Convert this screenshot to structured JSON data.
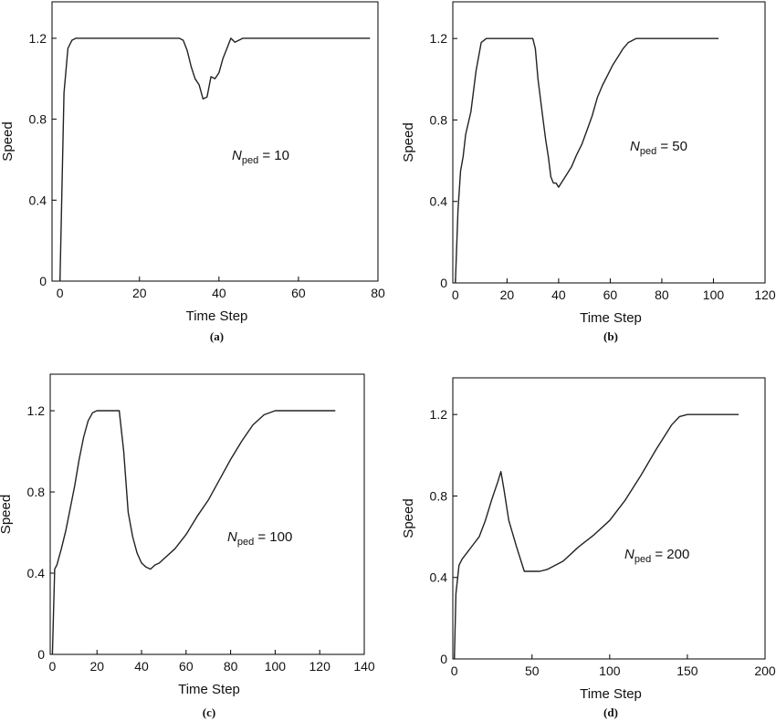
{
  "chart_data": [
    {
      "type": "line",
      "caption": "(a)",
      "xlabel": "Time Step",
      "ylabel": "Speed",
      "xlim": [
        -2,
        80
      ],
      "ylim": [
        0,
        1.2
      ],
      "xticks": [
        0,
        20,
        40,
        60,
        80
      ],
      "yticks": [
        0,
        0.4,
        0.8,
        1.2
      ],
      "ytick_labels": [
        "0",
        "0.4",
        "0.8",
        "1.2"
      ],
      "annotation": {
        "symbol": "N",
        "subscript": "ped",
        "text": " = 10"
      },
      "series": [
        {
          "x": [
            0,
            1,
            2,
            3,
            4,
            5,
            10,
            20,
            30,
            31,
            32,
            33,
            34,
            35,
            36,
            37,
            38,
            39,
            40,
            41,
            42,
            43,
            44,
            45,
            46,
            47,
            50,
            60,
            70,
            78
          ],
          "y": [
            0,
            0.93,
            1.15,
            1.19,
            1.2,
            1.2,
            1.2,
            1.2,
            1.2,
            1.19,
            1.14,
            1.06,
            1.0,
            0.97,
            0.9,
            0.91,
            1.01,
            1.0,
            1.03,
            1.1,
            1.15,
            1.2,
            1.18,
            1.19,
            1.2,
            1.2,
            1.2,
            1.2,
            1.2,
            1.2
          ]
        }
      ]
    },
    {
      "type": "line",
      "caption": "(b)",
      "xlabel": "Time Step",
      "ylabel": "Speed",
      "xlim": [
        -1,
        120
      ],
      "ylim": [
        0,
        1.2
      ],
      "xticks": [
        0,
        20,
        40,
        60,
        80,
        100,
        120
      ],
      "yticks": [
        0,
        0.4,
        0.8,
        1.2
      ],
      "ytick_labels": [
        "0",
        "0.4",
        "0.8",
        "1.2"
      ],
      "annotation": {
        "symbol": "N",
        "subscript": "ped",
        "text": " = 50"
      },
      "series": [
        {
          "x": [
            0,
            1,
            2,
            3,
            4,
            6,
            8,
            10,
            12,
            15,
            20,
            25,
            30,
            31,
            32,
            33,
            34,
            35,
            36,
            37,
            38,
            39,
            40,
            41,
            43,
            45,
            47,
            49,
            51,
            53,
            55,
            57,
            59,
            61,
            63,
            65,
            67,
            70,
            75,
            80,
            90,
            102
          ],
          "y": [
            0,
            0.36,
            0.55,
            0.62,
            0.73,
            0.84,
            1.04,
            1.18,
            1.2,
            1.2,
            1.2,
            1.2,
            1.2,
            1.15,
            1.0,
            0.9,
            0.8,
            0.7,
            0.62,
            0.52,
            0.49,
            0.49,
            0.47,
            0.49,
            0.53,
            0.57,
            0.63,
            0.68,
            0.75,
            0.82,
            0.91,
            0.97,
            1.02,
            1.07,
            1.11,
            1.15,
            1.18,
            1.2,
            1.2,
            1.2,
            1.2,
            1.2
          ]
        }
      ]
    },
    {
      "type": "line",
      "caption": "(c)",
      "xlabel": "Time Step",
      "ylabel": "Speed",
      "xlim": [
        -1,
        140
      ],
      "ylim": [
        0,
        1.2
      ],
      "xticks": [
        0,
        20,
        40,
        60,
        80,
        100,
        120,
        140
      ],
      "yticks": [
        0,
        0.4,
        0.8,
        1.2
      ],
      "ytick_labels": [
        "0",
        "0.4",
        "0.8",
        "1.2"
      ],
      "annotation": {
        "symbol": "N",
        "subscript": "ped",
        "text": " = 100"
      },
      "series": [
        {
          "x": [
            0,
            1,
            2,
            4,
            6,
            8,
            10,
            12,
            14,
            16,
            18,
            20,
            22,
            24,
            28,
            30,
            32,
            34,
            36,
            38,
            40,
            42,
            44,
            46,
            48,
            50,
            55,
            60,
            65,
            70,
            75,
            80,
            85,
            90,
            95,
            100,
            110,
            127
          ],
          "y": [
            0,
            0.42,
            0.44,
            0.52,
            0.61,
            0.72,
            0.83,
            0.96,
            1.07,
            1.15,
            1.19,
            1.2,
            1.2,
            1.2,
            1.2,
            1.2,
            1.0,
            0.7,
            0.58,
            0.5,
            0.45,
            0.43,
            0.42,
            0.44,
            0.45,
            0.47,
            0.52,
            0.59,
            0.68,
            0.76,
            0.86,
            0.96,
            1.05,
            1.13,
            1.18,
            1.2,
            1.2,
            1.2
          ]
        }
      ]
    },
    {
      "type": "line",
      "caption": "(d)",
      "xlabel": "Time Step",
      "ylabel": "Speed",
      "xlim": [
        -1,
        200
      ],
      "ylim": [
        0,
        1.2
      ],
      "xticks": [
        0,
        50,
        100,
        150,
        200
      ],
      "yticks": [
        0,
        0.4,
        0.8,
        1.2
      ],
      "ytick_labels": [
        "0",
        "0.4",
        "0.8",
        "1.2"
      ],
      "annotation": {
        "symbol": "N",
        "subscript": "ped",
        "text": " = 200"
      },
      "series": [
        {
          "x": [
            0,
            1,
            3,
            5,
            8,
            12,
            16,
            20,
            24,
            28,
            30,
            32,
            35,
            40,
            45,
            50,
            55,
            60,
            70,
            80,
            90,
            100,
            110,
            120,
            130,
            140,
            145,
            150,
            160,
            183
          ],
          "y": [
            0,
            0.32,
            0.46,
            0.49,
            0.52,
            0.56,
            0.6,
            0.68,
            0.78,
            0.87,
            0.92,
            0.83,
            0.68,
            0.55,
            0.43,
            0.43,
            0.43,
            0.44,
            0.48,
            0.55,
            0.61,
            0.68,
            0.78,
            0.9,
            1.03,
            1.15,
            1.19,
            1.2,
            1.2,
            1.2
          ]
        }
      ]
    }
  ]
}
